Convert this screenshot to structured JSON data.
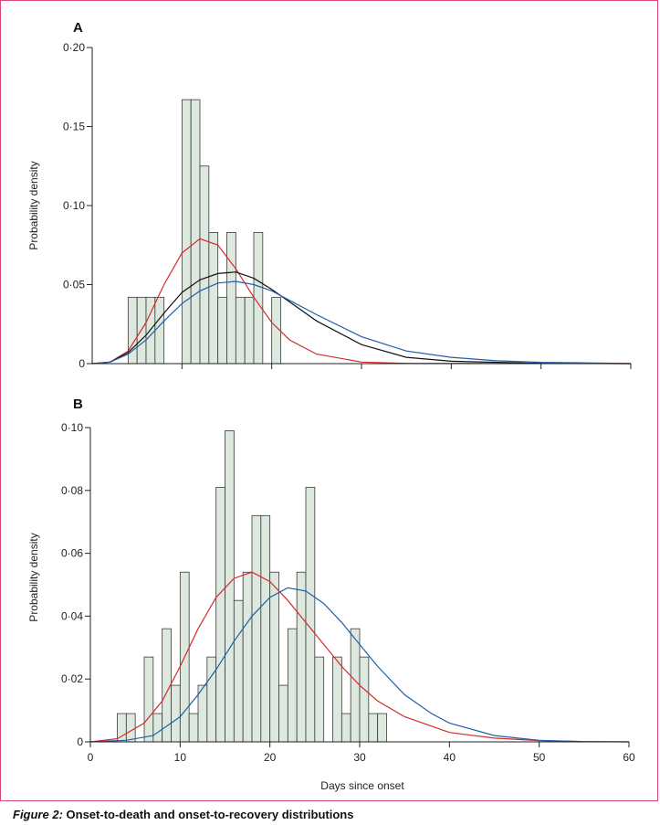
{
  "figure": {
    "caption_label": "Figure 2:",
    "caption_text": " Onset-to-death and onset-to-recovery distributions"
  },
  "colors": {
    "bar_fill": "#dde8de",
    "bar_stroke": "#3a3a3a",
    "red": "#d42a2a",
    "black": "#111111",
    "blue": "#1f5fa8"
  },
  "chart_data": [
    {
      "panel": "A",
      "type": "bar",
      "ylabel": "Probability density",
      "xlabel": "",
      "xlim": [
        0,
        60
      ],
      "ylim": [
        0,
        0.2
      ],
      "yticks": [
        "0",
        "0·05",
        "0·10",
        "0·15",
        "0·20"
      ],
      "ytick_values": [
        0,
        0.05,
        0.1,
        0.15,
        0.2
      ],
      "bars": [
        {
          "x": 4,
          "value": 0.042
        },
        {
          "x": 5,
          "value": 0.042
        },
        {
          "x": 6,
          "value": 0.042
        },
        {
          "x": 7,
          "value": 0.042
        },
        {
          "x": 10,
          "value": 0.167
        },
        {
          "x": 11,
          "value": 0.167
        },
        {
          "x": 12,
          "value": 0.125
        },
        {
          "x": 13,
          "value": 0.083
        },
        {
          "x": 14,
          "value": 0.042
        },
        {
          "x": 15,
          "value": 0.083
        },
        {
          "x": 16,
          "value": 0.042
        },
        {
          "x": 17,
          "value": 0.042
        },
        {
          "x": 18,
          "value": 0.083
        },
        {
          "x": 20,
          "value": 0.042
        }
      ],
      "curves": [
        {
          "color": "red",
          "points": [
            [
              0,
              0
            ],
            [
              2,
              0.001
            ],
            [
              4,
              0.008
            ],
            [
              6,
              0.026
            ],
            [
              8,
              0.05
            ],
            [
              10,
              0.07
            ],
            [
              12,
              0.079
            ],
            [
              14,
              0.075
            ],
            [
              16,
              0.06
            ],
            [
              18,
              0.042
            ],
            [
              20,
              0.026
            ],
            [
              22,
              0.015
            ],
            [
              25,
              0.006
            ],
            [
              30,
              0.001
            ],
            [
              35,
              0.0002
            ],
            [
              60,
              0
            ]
          ]
        },
        {
          "color": "black",
          "points": [
            [
              0,
              0
            ],
            [
              2,
              0.001
            ],
            [
              4,
              0.007
            ],
            [
              6,
              0.018
            ],
            [
              8,
              0.032
            ],
            [
              10,
              0.045
            ],
            [
              12,
              0.053
            ],
            [
              14,
              0.057
            ],
            [
              16,
              0.058
            ],
            [
              18,
              0.054
            ],
            [
              20,
              0.047
            ],
            [
              22,
              0.039
            ],
            [
              25,
              0.027
            ],
            [
              30,
              0.012
            ],
            [
              35,
              0.004
            ],
            [
              40,
              0.0015
            ],
            [
              50,
              0.0002
            ],
            [
              60,
              0
            ]
          ]
        },
        {
          "color": "blue",
          "points": [
            [
              0,
              0
            ],
            [
              2,
              0.001
            ],
            [
              4,
              0.006
            ],
            [
              6,
              0.015
            ],
            [
              8,
              0.027
            ],
            [
              10,
              0.038
            ],
            [
              12,
              0.046
            ],
            [
              14,
              0.051
            ],
            [
              16,
              0.052
            ],
            [
              18,
              0.05
            ],
            [
              20,
              0.046
            ],
            [
              22,
              0.04
            ],
            [
              25,
              0.031
            ],
            [
              30,
              0.017
            ],
            [
              35,
              0.008
            ],
            [
              40,
              0.004
            ],
            [
              45,
              0.0018
            ],
            [
              50,
              0.0008
            ],
            [
              60,
              0.0001
            ]
          ]
        }
      ]
    },
    {
      "panel": "B",
      "type": "bar",
      "ylabel": "Probability density",
      "xlabel": "Days since onset",
      "xlim": [
        0,
        60
      ],
      "ylim": [
        0,
        0.1
      ],
      "xticks": [
        "0",
        "10",
        "20",
        "30",
        "40",
        "50",
        "60"
      ],
      "xtick_values": [
        0,
        10,
        20,
        30,
        40,
        50,
        60
      ],
      "yticks": [
        "0",
        "0·02",
        "0·04",
        "0·06",
        "0·08",
        "0·10"
      ],
      "ytick_values": [
        0,
        0.02,
        0.04,
        0.06,
        0.08,
        0.1
      ],
      "bars": [
        {
          "x": 3,
          "value": 0.009
        },
        {
          "x": 4,
          "value": 0.009
        },
        {
          "x": 6,
          "value": 0.027
        },
        {
          "x": 7,
          "value": 0.009
        },
        {
          "x": 8,
          "value": 0.036
        },
        {
          "x": 9,
          "value": 0.018
        },
        {
          "x": 10,
          "value": 0.054
        },
        {
          "x": 11,
          "value": 0.009
        },
        {
          "x": 12,
          "value": 0.018
        },
        {
          "x": 13,
          "value": 0.027
        },
        {
          "x": 14,
          "value": 0.081
        },
        {
          "x": 15,
          "value": 0.099
        },
        {
          "x": 16,
          "value": 0.045
        },
        {
          "x": 17,
          "value": 0.054
        },
        {
          "x": 18,
          "value": 0.072
        },
        {
          "x": 19,
          "value": 0.072
        },
        {
          "x": 20,
          "value": 0.054
        },
        {
          "x": 21,
          "value": 0.018
        },
        {
          "x": 22,
          "value": 0.036
        },
        {
          "x": 23,
          "value": 0.054
        },
        {
          "x": 24,
          "value": 0.081
        },
        {
          "x": 25,
          "value": 0.027
        },
        {
          "x": 27,
          "value": 0.027
        },
        {
          "x": 28,
          "value": 0.009
        },
        {
          "x": 29,
          "value": 0.036
        },
        {
          "x": 30,
          "value": 0.027
        },
        {
          "x": 31,
          "value": 0.009
        },
        {
          "x": 32,
          "value": 0.009
        }
      ],
      "curves": [
        {
          "color": "red",
          "points": [
            [
              0,
              0
            ],
            [
              3,
              0.001
            ],
            [
              6,
              0.006
            ],
            [
              8,
              0.013
            ],
            [
              10,
              0.024
            ],
            [
              12,
              0.036
            ],
            [
              14,
              0.046
            ],
            [
              16,
              0.052
            ],
            [
              18,
              0.054
            ],
            [
              20,
              0.051
            ],
            [
              22,
              0.045
            ],
            [
              24,
              0.038
            ],
            [
              26,
              0.031
            ],
            [
              28,
              0.024
            ],
            [
              30,
              0.018
            ],
            [
              32,
              0.013
            ],
            [
              35,
              0.008
            ],
            [
              40,
              0.003
            ],
            [
              45,
              0.0012
            ],
            [
              50,
              0.0004
            ],
            [
              55,
              0.0001
            ],
            [
              60,
              0
            ]
          ]
        },
        {
          "color": "blue",
          "points": [
            [
              0,
              0
            ],
            [
              4,
              0.0005
            ],
            [
              7,
              0.002
            ],
            [
              10,
              0.008
            ],
            [
              12,
              0.015
            ],
            [
              14,
              0.023
            ],
            [
              16,
              0.032
            ],
            [
              18,
              0.04
            ],
            [
              20,
              0.046
            ],
            [
              22,
              0.049
            ],
            [
              24,
              0.048
            ],
            [
              26,
              0.044
            ],
            [
              28,
              0.038
            ],
            [
              30,
              0.031
            ],
            [
              32,
              0.024
            ],
            [
              35,
              0.015
            ],
            [
              38,
              0.009
            ],
            [
              40,
              0.006
            ],
            [
              45,
              0.002
            ],
            [
              50,
              0.0005
            ],
            [
              55,
              0.0001
            ],
            [
              60,
              0
            ]
          ]
        }
      ]
    }
  ]
}
